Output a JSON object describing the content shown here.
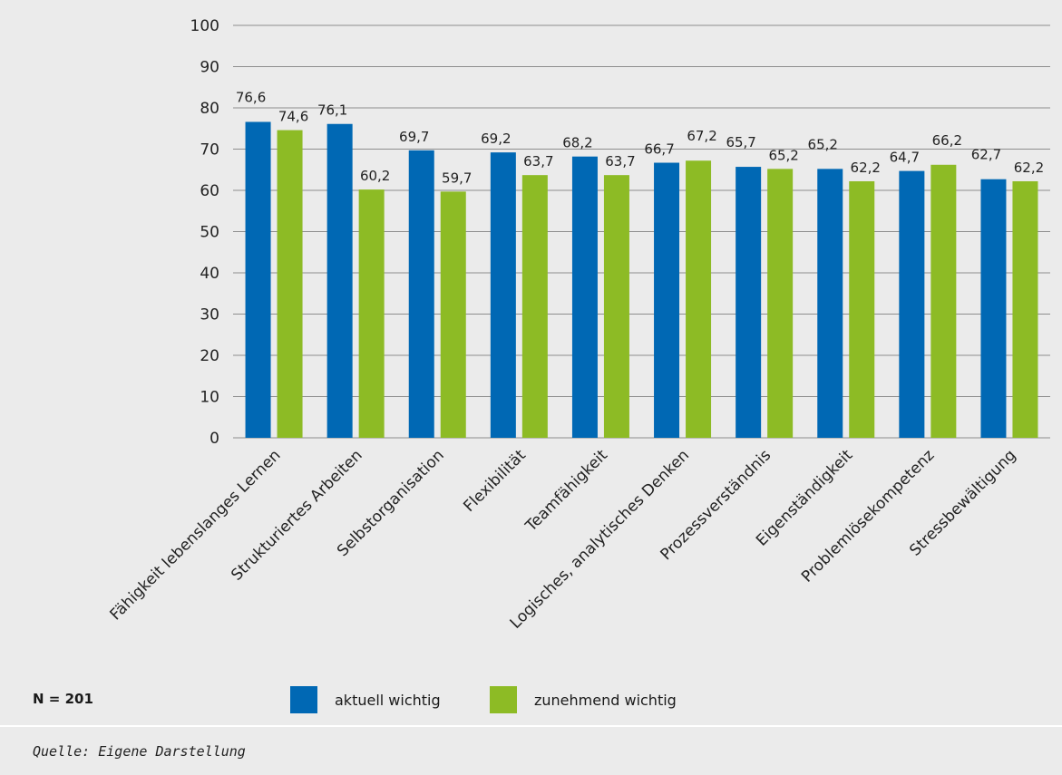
{
  "chart_data": {
    "type": "bar",
    "categories": [
      "Fähigkeit lebenslanges Lernen",
      "Strukturiertes Arbeiten",
      "Selbstorganisation",
      "Flexibilität",
      "Teamfähigkeit",
      "Logisches, analytisches Denken",
      "Prozessverständnis",
      "Eigenständigkeit",
      "Problemlösekompetenz",
      "Stressbewältigung"
    ],
    "series": [
      {
        "name": "aktuell wichtig",
        "color": "#0068b4",
        "values": [
          76.6,
          76.1,
          69.7,
          69.2,
          68.2,
          66.7,
          65.7,
          65.2,
          64.7,
          62.7
        ],
        "labels": [
          "76,6",
          "76,1",
          "69,7",
          "69,2",
          "68,2",
          "66,7",
          "65,7",
          "65,2",
          "64,7",
          "62,7"
        ]
      },
      {
        "name": "zunehmend wichtig",
        "color": "#8dbb25",
        "values": [
          74.6,
          60.2,
          59.7,
          63.7,
          63.7,
          67.2,
          65.2,
          62.2,
          66.2,
          62.2
        ],
        "labels": [
          "74,6",
          "60,2",
          "59,7",
          "63,7",
          "63,7",
          "67,2",
          "65,2",
          "62,2",
          "66,2",
          "62,2"
        ]
      }
    ],
    "ylim": [
      0,
      100
    ],
    "yticks": [
      0,
      10,
      20,
      30,
      40,
      50,
      60,
      70,
      80,
      90,
      100
    ],
    "grid": true,
    "legend_position": "bottom",
    "xlabel": "",
    "ylabel": ""
  },
  "sample_size": "N = 201",
  "source": "Quelle: Eigene Darstellung"
}
